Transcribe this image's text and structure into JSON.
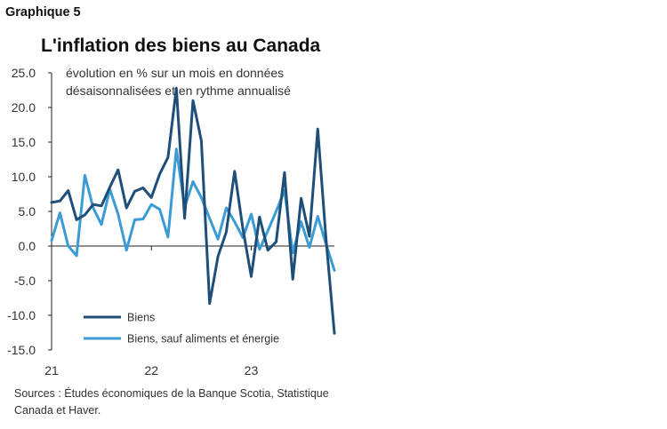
{
  "header": {
    "label": "Graphique 5"
  },
  "footer": {
    "sources": "Sources : Études économiques de la Banque Scotia, Statistique Canada et Haver."
  },
  "chart_data": {
    "type": "line",
    "title": "L'inflation des biens au Canada",
    "subtitle": "évolution en % sur un mois en données désaisonnalisées et en rythme annualisé",
    "xlabel": "",
    "ylabel": "",
    "ylim": [
      -15,
      25
    ],
    "yticks": [
      25.0,
      20.0,
      15.0,
      10.0,
      5.0,
      0.0,
      -5.0,
      -10.0,
      -15.0
    ],
    "ytick_labels": [
      "25.0",
      "20.0",
      "15.0",
      "10.0",
      "5.0",
      "0.0",
      "-5.0",
      "-10.0",
      "-15.0"
    ],
    "x_tick_labels": [
      {
        "label": "21",
        "index": 0
      },
      {
        "label": "22",
        "index": 12
      },
      {
        "label": "23",
        "index": 24
      }
    ],
    "grid": false,
    "legend_position": "bottom-left",
    "series": [
      {
        "name": "Biens",
        "color": "#1f4e79",
        "values": [
          6.3,
          6.5,
          8.0,
          3.8,
          4.5,
          6.0,
          5.8,
          8.5,
          11.0,
          5.5,
          7.9,
          8.4,
          7.0,
          10.4,
          12.8,
          22.8,
          4.0,
          21.0,
          15.2,
          -8.3,
          -1.5,
          2.0,
          10.8,
          2.5,
          -4.4,
          4.2,
          -0.6,
          0.6,
          10.6,
          -4.8,
          6.9,
          1.4,
          16.9,
          1.0,
          -12.6
        ]
      },
      {
        "name": "Biens, sauf aliments et énergie",
        "color": "#3a9bd5",
        "values": [
          0.8,
          4.8,
          0.0,
          -1.4,
          10.2,
          5.5,
          3.1,
          8.2,
          4.6,
          -0.6,
          3.8,
          3.9,
          6.0,
          5.3,
          1.3,
          14.0,
          5.6,
          9.3,
          7.0,
          4.0,
          1.0,
          5.5,
          3.5,
          1.2,
          4.6,
          -0.5,
          2.2,
          5.0,
          8.0,
          -1.0,
          3.5,
          -0.2,
          4.3,
          0.3,
          -3.5
        ]
      }
    ]
  }
}
